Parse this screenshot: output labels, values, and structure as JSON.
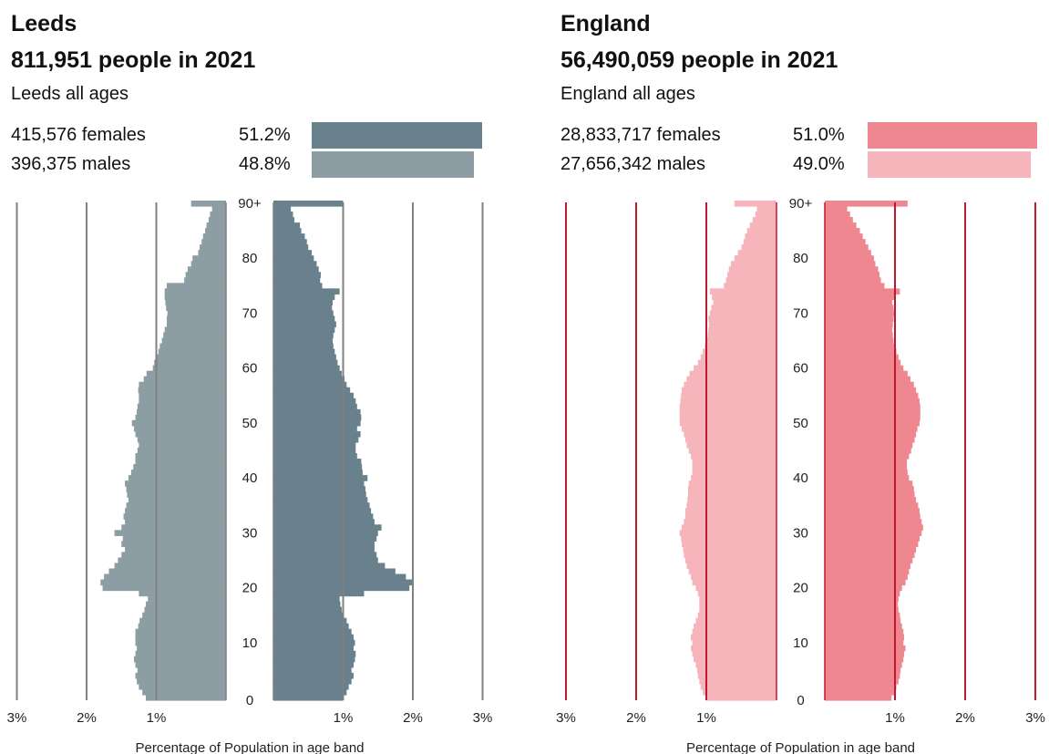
{
  "chart_data": [
    {
      "type": "bar",
      "orientation": "horizontal-population-pyramid",
      "area": "Leeds",
      "title": "811,951 people in 2021",
      "subtitle": "Leeds all ages",
      "females_label": "415,576 females",
      "males_label": "396,375 males",
      "females_pct": "51.2%",
      "males_pct": "48.8%",
      "females_share": 51.2,
      "males_share": 48.8,
      "female_color": "#69808d",
      "male_color": "#8c9ea3",
      "gridline_color": "#808080",
      "xlabel": "Percentage of Population in age band",
      "x_ticks": [
        "3%",
        "2%",
        "1%",
        "1%",
        "2%",
        "3%"
      ],
      "xlim": [
        -3,
        3
      ],
      "y_ticks": [
        "0",
        "10",
        "20",
        "30",
        "40",
        "50",
        "60",
        "70",
        "80",
        "90+"
      ],
      "ages": [
        0,
        1,
        2,
        3,
        4,
        5,
        6,
        7,
        8,
        9,
        10,
        11,
        12,
        13,
        14,
        15,
        16,
        17,
        18,
        19,
        20,
        21,
        22,
        23,
        24,
        25,
        26,
        27,
        28,
        29,
        30,
        31,
        32,
        33,
        34,
        35,
        36,
        37,
        38,
        39,
        40,
        41,
        42,
        43,
        44,
        45,
        46,
        47,
        48,
        49,
        50,
        51,
        52,
        53,
        54,
        55,
        56,
        57,
        58,
        59,
        60,
        61,
        62,
        63,
        64,
        65,
        66,
        67,
        68,
        69,
        70,
        71,
        72,
        73,
        74,
        75,
        76,
        77,
        78,
        79,
        80,
        81,
        82,
        83,
        84,
        85,
        86,
        87,
        88,
        89,
        90
      ],
      "series": [
        {
          "name": "males",
          "side": "left",
          "values": [
            1.15,
            1.2,
            1.25,
            1.28,
            1.3,
            1.27,
            1.3,
            1.32,
            1.3,
            1.28,
            1.3,
            1.3,
            1.3,
            1.26,
            1.24,
            1.2,
            1.17,
            1.15,
            1.12,
            1.25,
            1.77,
            1.8,
            1.75,
            1.68,
            1.6,
            1.55,
            1.5,
            1.45,
            1.5,
            1.48,
            1.6,
            1.5,
            1.45,
            1.47,
            1.45,
            1.43,
            1.4,
            1.42,
            1.43,
            1.45,
            1.4,
            1.36,
            1.33,
            1.3,
            1.3,
            1.27,
            1.25,
            1.27,
            1.3,
            1.32,
            1.35,
            1.3,
            1.28,
            1.27,
            1.25,
            1.25,
            1.26,
            1.25,
            1.18,
            1.14,
            1.05,
            1.03,
            1.0,
            0.97,
            0.95,
            0.92,
            0.9,
            0.88,
            0.85,
            0.85,
            0.84,
            0.86,
            0.87,
            0.88,
            0.88,
            0.85,
            0.6,
            0.58,
            0.55,
            0.5,
            0.48,
            0.4,
            0.38,
            0.35,
            0.33,
            0.3,
            0.28,
            0.25,
            0.23,
            0.2,
            0.5
          ]
        },
        {
          "name": "females",
          "side": "right",
          "values": [
            1.0,
            1.05,
            1.08,
            1.12,
            1.15,
            1.12,
            1.15,
            1.17,
            1.18,
            1.15,
            1.17,
            1.15,
            1.12,
            1.08,
            1.05,
            1.0,
            0.98,
            0.96,
            0.95,
            1.3,
            1.95,
            2.0,
            1.9,
            1.75,
            1.6,
            1.5,
            1.48,
            1.45,
            1.45,
            1.48,
            1.5,
            1.55,
            1.45,
            1.43,
            1.4,
            1.38,
            1.35,
            1.33,
            1.32,
            1.3,
            1.35,
            1.28,
            1.27,
            1.26,
            1.2,
            1.18,
            1.18,
            1.22,
            1.25,
            1.2,
            1.25,
            1.26,
            1.25,
            1.2,
            1.18,
            1.15,
            1.1,
            1.05,
            1.02,
            0.98,
            0.95,
            0.92,
            0.9,
            0.88,
            0.86,
            0.85,
            0.86,
            0.88,
            0.9,
            0.88,
            0.86,
            0.84,
            0.85,
            0.88,
            0.95,
            0.7,
            0.67,
            0.68,
            0.65,
            0.62,
            0.58,
            0.55,
            0.5,
            0.48,
            0.45,
            0.4,
            0.38,
            0.3,
            0.28,
            0.25,
            1.0
          ]
        }
      ]
    },
    {
      "type": "bar",
      "orientation": "horizontal-population-pyramid",
      "area": "England",
      "title": "56,490,059 people in 2021",
      "subtitle": "England all ages",
      "females_label": "28,833,717 females",
      "males_label": "27,656,342 males",
      "females_pct": "51.0%",
      "males_pct": "49.0%",
      "females_share": 51.0,
      "males_share": 49.0,
      "female_color": "#ef8790",
      "male_color": "#f5b5bb",
      "gridline_color": "#c0182c",
      "xlabel": "Percentage of Population in age band",
      "x_ticks": [
        "3%",
        "2%",
        "1%",
        "1%",
        "2%",
        "3%"
      ],
      "xlim": [
        -3,
        3
      ],
      "y_ticks": [
        "0",
        "10",
        "20",
        "30",
        "40",
        "50",
        "60",
        "70",
        "80",
        "90+"
      ],
      "ages": [
        0,
        1,
        2,
        3,
        4,
        5,
        6,
        7,
        8,
        9,
        10,
        11,
        12,
        13,
        14,
        15,
        16,
        17,
        18,
        19,
        20,
        21,
        22,
        23,
        24,
        25,
        26,
        27,
        28,
        29,
        30,
        31,
        32,
        33,
        34,
        35,
        36,
        37,
        38,
        39,
        40,
        41,
        42,
        43,
        44,
        45,
        46,
        47,
        48,
        49,
        50,
        51,
        52,
        53,
        54,
        55,
        56,
        57,
        58,
        59,
        60,
        61,
        62,
        63,
        64,
        65,
        66,
        67,
        68,
        69,
        70,
        71,
        72,
        73,
        74,
        75,
        76,
        77,
        78,
        79,
        80,
        81,
        82,
        83,
        84,
        85,
        86,
        87,
        88,
        89,
        90
      ],
      "series": [
        {
          "name": "males",
          "side": "left",
          "values": [
            1.0,
            1.05,
            1.08,
            1.1,
            1.12,
            1.13,
            1.15,
            1.18,
            1.2,
            1.22,
            1.2,
            1.22,
            1.2,
            1.18,
            1.15,
            1.12,
            1.1,
            1.1,
            1.1,
            1.12,
            1.15,
            1.2,
            1.22,
            1.25,
            1.28,
            1.3,
            1.32,
            1.33,
            1.35,
            1.36,
            1.38,
            1.35,
            1.32,
            1.3,
            1.3,
            1.28,
            1.27,
            1.26,
            1.26,
            1.25,
            1.22,
            1.2,
            1.2,
            1.2,
            1.22,
            1.25,
            1.28,
            1.3,
            1.32,
            1.35,
            1.38,
            1.38,
            1.38,
            1.38,
            1.37,
            1.36,
            1.35,
            1.32,
            1.28,
            1.24,
            1.18,
            1.12,
            1.08,
            1.05,
            1.02,
            1.0,
            0.98,
            0.97,
            0.96,
            0.97,
            0.95,
            0.93,
            0.9,
            0.92,
            0.95,
            0.75,
            0.72,
            0.7,
            0.68,
            0.65,
            0.6,
            0.55,
            0.5,
            0.47,
            0.45,
            0.42,
            0.38,
            0.34,
            0.3,
            0.28,
            0.6
          ]
        },
        {
          "name": "females",
          "side": "right",
          "values": [
            0.95,
            1.0,
            1.02,
            1.05,
            1.07,
            1.08,
            1.1,
            1.12,
            1.13,
            1.15,
            1.12,
            1.13,
            1.12,
            1.1,
            1.08,
            1.07,
            1.05,
            1.04,
            1.05,
            1.07,
            1.1,
            1.15,
            1.18,
            1.2,
            1.22,
            1.25,
            1.28,
            1.3,
            1.33,
            1.35,
            1.38,
            1.4,
            1.38,
            1.36,
            1.35,
            1.33,
            1.3,
            1.28,
            1.27,
            1.25,
            1.2,
            1.18,
            1.17,
            1.17,
            1.2,
            1.23,
            1.25,
            1.28,
            1.3,
            1.32,
            1.35,
            1.36,
            1.36,
            1.36,
            1.35,
            1.33,
            1.3,
            1.27,
            1.22,
            1.18,
            1.12,
            1.08,
            1.05,
            1.02,
            1.0,
            0.98,
            0.97,
            0.96,
            0.97,
            0.98,
            1.0,
            0.98,
            0.96,
            1.0,
            1.07,
            0.85,
            0.8,
            0.78,
            0.76,
            0.72,
            0.7,
            0.66,
            0.62,
            0.58,
            0.54,
            0.5,
            0.45,
            0.4,
            0.36,
            0.32,
            1.18
          ]
        }
      ]
    }
  ]
}
